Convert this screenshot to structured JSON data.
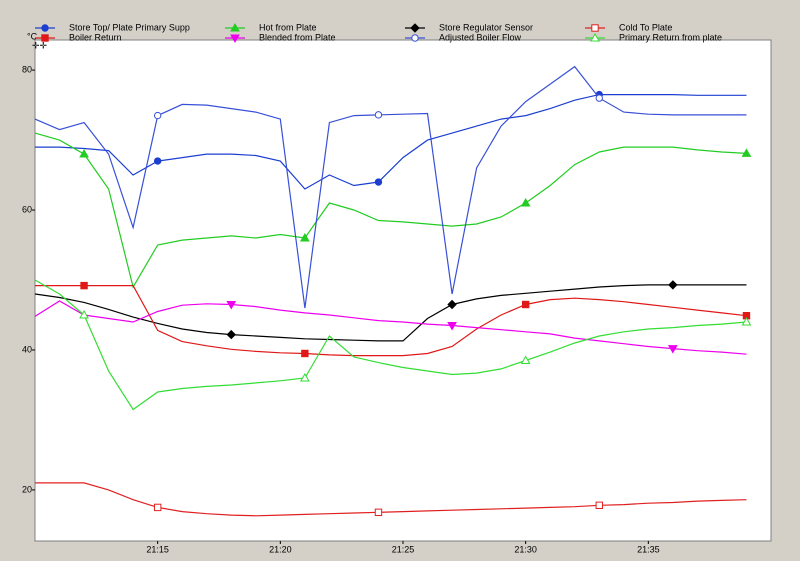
{
  "chart_data": {
    "type": "line",
    "y_label": "°C",
    "x": [
      "21:10",
      "21:11",
      "21:12",
      "21:13",
      "21:14",
      "21:15",
      "21:16",
      "21:17",
      "21:18",
      "21:19",
      "21:20",
      "21:21",
      "21:22",
      "21:23",
      "21:24",
      "21:25",
      "21:26",
      "21:27",
      "21:28",
      "21:29",
      "21:30",
      "21:31",
      "21:32",
      "21:33",
      "21:34",
      "21:35",
      "21:36",
      "21:37",
      "21:38",
      "21:39"
    ],
    "xlim": [
      "21:10",
      "21:40"
    ],
    "xticks": [
      "21:15",
      "21:20",
      "21:25",
      "21:30",
      "21:35"
    ],
    "ylim": [
      12.7,
      84.3
    ],
    "yticks": [
      20,
      40,
      60,
      80
    ],
    "series": [
      {
        "name": "Store Top/ Plate Primary Supp",
        "color": "#1c3fd0",
        "marker": "circle",
        "filled": true,
        "values": [
          69,
          69,
          68.8,
          68.5,
          65,
          67,
          67.5,
          68,
          68,
          67.8,
          67,
          63,
          65,
          63.5,
          64,
          67.5,
          70,
          71,
          72,
          73,
          73.5,
          74.5,
          75.7,
          76.5,
          76.5,
          76.5,
          76.5,
          76.4,
          76.4,
          76.4
        ]
      },
      {
        "name": "Hot from Plate",
        "color": "#22cc22",
        "marker": "triangle",
        "filled": true,
        "values": [
          71,
          70,
          68,
          63,
          49,
          55,
          55.7,
          56,
          56.3,
          56,
          56.5,
          56,
          61,
          60,
          58.5,
          58.3,
          58,
          57.7,
          58,
          59,
          61,
          63.5,
          66.5,
          68.3,
          69,
          69,
          69,
          68.6,
          68.3,
          68.1
        ]
      },
      {
        "name": "Store Regulator Sensor",
        "color": "#000000",
        "marker": "diamond",
        "filled": true,
        "values": [
          48,
          47.5,
          46.8,
          45.8,
          44.7,
          43.8,
          43,
          42.5,
          42.2,
          42,
          41.8,
          41.6,
          41.5,
          41.4,
          41.3,
          41.3,
          44.5,
          46.5,
          47.3,
          47.8,
          48.1,
          48.4,
          48.7,
          49,
          49.2,
          49.3,
          49.3,
          49.3,
          49.3,
          49.3
        ]
      },
      {
        "name": "Cold To Plate",
        "color": "#e02020",
        "marker": "square",
        "filled": false,
        "values": [
          21,
          21,
          21,
          20,
          18.6,
          17.5,
          16.9,
          16.6,
          16.4,
          16.3,
          16.4,
          16.5,
          16.6,
          16.7,
          16.8,
          16.9,
          17,
          17.1,
          17.2,
          17.3,
          17.4,
          17.5,
          17.6,
          17.8,
          17.9,
          18.1,
          18.2,
          18.4,
          18.5,
          18.6
        ]
      },
      {
        "name": "Boiler Return",
        "color": "#e01818",
        "marker": "square",
        "filled": true,
        "values": [
          49.2,
          49.2,
          49.2,
          49.2,
          49.2,
          42.8,
          41.2,
          40.6,
          40.1,
          39.8,
          39.6,
          39.5,
          39.3,
          39.2,
          39.2,
          39.2,
          39.5,
          40.5,
          43,
          45,
          46.5,
          47.2,
          47.4,
          47.2,
          46.9,
          46.5,
          46.1,
          45.7,
          45.3,
          44.9
        ]
      },
      {
        "name": "Blended from Plate",
        "color": "#ee00ee",
        "marker": "triangle-down",
        "filled": true,
        "values": [
          44.8,
          47,
          45,
          44.5,
          44,
          45.5,
          46.4,
          46.6,
          46.5,
          46.2,
          45.7,
          45.3,
          45,
          44.6,
          44.2,
          44,
          43.7,
          43.5,
          43.2,
          42.9,
          42.6,
          42.3,
          41.7,
          41.3,
          40.9,
          40.5,
          40.2,
          39.9,
          39.7,
          39.4
        ]
      },
      {
        "name": "Adjusted Boiler Flow",
        "color": "#3850d8",
        "marker": "circle",
        "filled": false,
        "values": [
          73,
          71.5,
          72.5,
          68,
          57.5,
          73.5,
          75.1,
          75,
          74.5,
          74,
          73,
          46,
          72.5,
          73.5,
          73.6,
          73.7,
          73.8,
          48,
          66,
          72,
          75.5,
          78,
          80.5,
          76,
          74,
          73.7,
          73.6,
          73.6,
          73.6,
          73.6
        ]
      },
      {
        "name": "Primary Return from plate",
        "color": "#33dd33",
        "marker": "triangle",
        "filled": false,
        "values": [
          50,
          48,
          45,
          37,
          31.5,
          34,
          34.5,
          34.8,
          35,
          35.3,
          35.6,
          36,
          42,
          39,
          38.2,
          37.5,
          37,
          36.5,
          36.7,
          37.3,
          38.5,
          39.7,
          41,
          42,
          42.6,
          43,
          43.2,
          43.5,
          43.7,
          44
        ]
      }
    ]
  }
}
